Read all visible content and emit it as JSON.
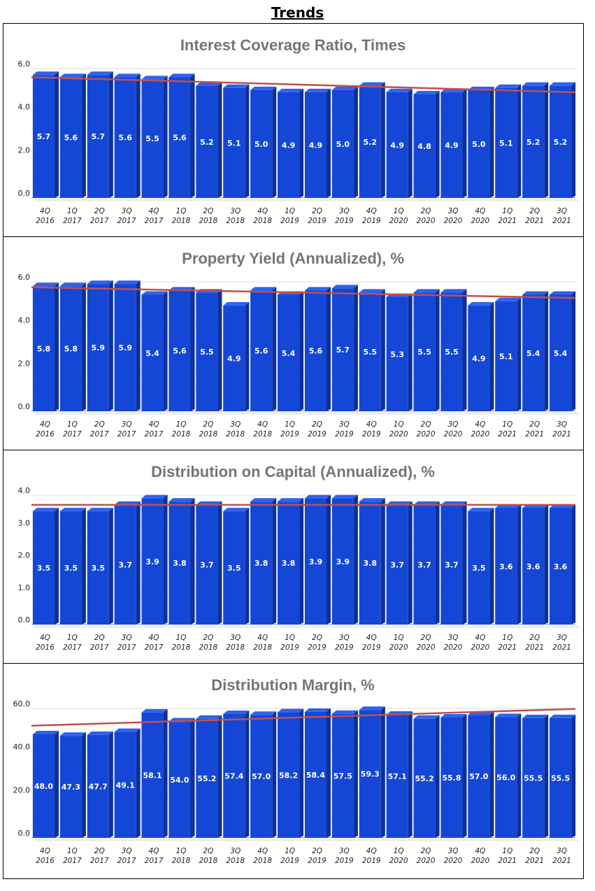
{
  "page": {
    "title": "Trends"
  },
  "colors": {
    "bar_front": "#1447d6",
    "bar_top": "#2f62ee",
    "bar_side": "#0c2f99",
    "trend": "#c0504d",
    "grid": "#dcdcdc",
    "title": "#757575"
  },
  "chart_data": [
    {
      "type": "bar",
      "title": "Interest Coverage Ratio, Times",
      "categories": [
        [
          "4Q",
          "2016"
        ],
        [
          "1Q",
          "2017"
        ],
        [
          "2Q",
          "2017"
        ],
        [
          "3Q",
          "2017"
        ],
        [
          "4Q",
          "2017"
        ],
        [
          "1Q",
          "2018"
        ],
        [
          "2Q",
          "2018"
        ],
        [
          "3Q",
          "2018"
        ],
        [
          "4Q",
          "2018"
        ],
        [
          "1Q",
          "2019"
        ],
        [
          "2Q",
          "2019"
        ],
        [
          "3Q",
          "2019"
        ],
        [
          "4Q",
          "2019"
        ],
        [
          "1Q",
          "2020"
        ],
        [
          "2Q",
          "2020"
        ],
        [
          "3Q",
          "2020"
        ],
        [
          "4Q",
          "2020"
        ],
        [
          "1Q",
          "2021"
        ],
        [
          "2Q",
          "2021"
        ],
        [
          "3Q",
          "2021"
        ]
      ],
      "values": [
        5.7,
        5.6,
        5.7,
        5.6,
        5.5,
        5.6,
        5.2,
        5.1,
        5.0,
        4.9,
        4.9,
        5.0,
        5.2,
        4.9,
        4.8,
        4.9,
        5.0,
        5.1,
        5.2,
        5.2
      ],
      "labels": [
        "5.7",
        "5.6",
        "5.7",
        "5.6",
        "5.5",
        "5.6",
        "5.2",
        "5.1",
        "5.0",
        "4.9",
        "4.9",
        "5.0",
        "5.2",
        "4.9",
        "4.8",
        "4.9",
        "5.0",
        "5.1",
        "5.2",
        "5.2"
      ],
      "yticks": [
        0,
        2,
        4,
        6
      ],
      "ytick_labels": [
        "0.0",
        "2.0",
        "4.0",
        "6.0"
      ],
      "ylim": [
        0,
        6
      ],
      "trendline": [
        5.6,
        4.9
      ]
    },
    {
      "type": "bar",
      "title": "Property Yield (Annualized), %",
      "categories": [
        [
          "4Q",
          "2016"
        ],
        [
          "1Q",
          "2017"
        ],
        [
          "2Q",
          "2017"
        ],
        [
          "3Q",
          "2017"
        ],
        [
          "4Q",
          "2017"
        ],
        [
          "1Q",
          "2018"
        ],
        [
          "2Q",
          "2018"
        ],
        [
          "3Q",
          "2018"
        ],
        [
          "4Q",
          "2018"
        ],
        [
          "1Q",
          "2019"
        ],
        [
          "2Q",
          "2019"
        ],
        [
          "3Q",
          "2019"
        ],
        [
          "4Q",
          "2019"
        ],
        [
          "1Q",
          "2020"
        ],
        [
          "2Q",
          "2020"
        ],
        [
          "3Q",
          "2020"
        ],
        [
          "4Q",
          "2020"
        ],
        [
          "1Q",
          "2021"
        ],
        [
          "2Q",
          "2021"
        ],
        [
          "3Q",
          "2021"
        ]
      ],
      "values": [
        5.8,
        5.8,
        5.9,
        5.9,
        5.4,
        5.6,
        5.5,
        4.9,
        5.6,
        5.4,
        5.6,
        5.7,
        5.5,
        5.3,
        5.5,
        5.5,
        4.9,
        5.1,
        5.4,
        5.4
      ],
      "labels": [
        "5.8",
        "5.8",
        "5.9",
        "5.9",
        "5.4",
        "5.6",
        "5.5",
        "4.9",
        "5.6",
        "5.4",
        "5.6",
        "5.7",
        "5.5",
        "5.3",
        "5.5",
        "5.5",
        "4.9",
        "5.1",
        "5.4",
        "5.4"
      ],
      "yticks": [
        0,
        2,
        4,
        6
      ],
      "ytick_labels": [
        "0.0",
        "2.0",
        "4.0",
        "6.0"
      ],
      "ylim": [
        0,
        6
      ],
      "trendline": [
        5.75,
        5.25
      ]
    },
    {
      "type": "bar",
      "title": "Distribution on Capital (Annualized), %",
      "categories": [
        [
          "4Q",
          "2016"
        ],
        [
          "1Q",
          "2017"
        ],
        [
          "2Q",
          "2017"
        ],
        [
          "3Q",
          "2017"
        ],
        [
          "4Q",
          "2017"
        ],
        [
          "1Q",
          "2018"
        ],
        [
          "2Q",
          "2018"
        ],
        [
          "3Q",
          "2018"
        ],
        [
          "4Q",
          "2018"
        ],
        [
          "1Q",
          "2019"
        ],
        [
          "2Q",
          "2019"
        ],
        [
          "3Q",
          "2019"
        ],
        [
          "4Q",
          "2019"
        ],
        [
          "1Q",
          "2020"
        ],
        [
          "2Q",
          "2020"
        ],
        [
          "3Q",
          "2020"
        ],
        [
          "4Q",
          "2020"
        ],
        [
          "1Q",
          "2021"
        ],
        [
          "2Q",
          "2021"
        ],
        [
          "3Q",
          "2021"
        ]
      ],
      "values": [
        3.5,
        3.5,
        3.5,
        3.7,
        3.9,
        3.8,
        3.7,
        3.5,
        3.8,
        3.8,
        3.9,
        3.9,
        3.8,
        3.7,
        3.7,
        3.7,
        3.5,
        3.6,
        3.6,
        3.6
      ],
      "labels": [
        "3.5",
        "3.5",
        "3.5",
        "3.7",
        "3.9",
        "3.8",
        "3.7",
        "3.5",
        "3.8",
        "3.8",
        "3.9",
        "3.9",
        "3.8",
        "3.7",
        "3.7",
        "3.7",
        "3.5",
        "3.6",
        "3.6",
        "3.6"
      ],
      "yticks": [
        0,
        1,
        2,
        3,
        4
      ],
      "ytick_labels": [
        "0.0",
        "1.0",
        "2.0",
        "3.0",
        "4.0"
      ],
      "ylim": [
        0,
        4
      ],
      "trendline": [
        3.7,
        3.7
      ]
    },
    {
      "type": "bar",
      "title": "Distribution Margin, %",
      "categories": [
        [
          "4Q",
          "2016"
        ],
        [
          "1Q",
          "2017"
        ],
        [
          "2Q",
          "2017"
        ],
        [
          "3Q",
          "2017"
        ],
        [
          "4Q",
          "2017"
        ],
        [
          "1Q",
          "2018"
        ],
        [
          "2Q",
          "2018"
        ],
        [
          "3Q",
          "2018"
        ],
        [
          "4Q",
          "2018"
        ],
        [
          "1Q",
          "2019"
        ],
        [
          "2Q",
          "2019"
        ],
        [
          "3Q",
          "2019"
        ],
        [
          "4Q",
          "2019"
        ],
        [
          "1Q",
          "2020"
        ],
        [
          "2Q",
          "2020"
        ],
        [
          "3Q",
          "2020"
        ],
        [
          "4Q",
          "2020"
        ],
        [
          "1Q",
          "2021"
        ],
        [
          "2Q",
          "2021"
        ],
        [
          "3Q",
          "2021"
        ]
      ],
      "values": [
        48.0,
        47.3,
        47.7,
        49.1,
        58.1,
        54.0,
        55.2,
        57.4,
        57.0,
        58.2,
        58.4,
        57.5,
        59.3,
        57.1,
        55.2,
        55.8,
        57.0,
        56.0,
        55.5,
        55.5
      ],
      "labels": [
        "48.0",
        "47.3",
        "47.7",
        "49.1",
        "58.1",
        "54.0",
        "55.2",
        "57.4",
        "57.0",
        "58.2",
        "58.4",
        "57.5",
        "59.3",
        "57.1",
        "55.2",
        "55.8",
        "57.0",
        "56.0",
        "55.5",
        "55.5"
      ],
      "yticks": [
        0,
        20,
        40,
        60
      ],
      "ytick_labels": [
        "0.0",
        "20.0",
        "40.0",
        "60.0"
      ],
      "ylim": [
        0,
        60
      ],
      "trendline": [
        52.0,
        59.8
      ]
    }
  ]
}
